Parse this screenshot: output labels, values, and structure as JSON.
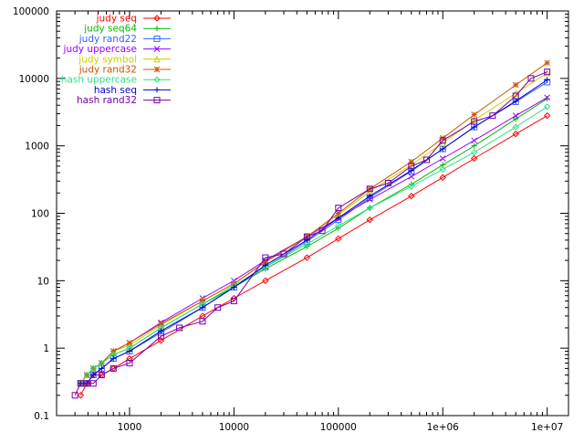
{
  "chart_data": {
    "type": "line",
    "title": "",
    "xlabel": "",
    "ylabel": "",
    "x_scale": "log",
    "y_scale": "log",
    "xlim": [
      200,
      16000000
    ],
    "ylim": [
      0.1,
      100000
    ],
    "grid": false,
    "legend_position": "top-left",
    "x_ticks": [
      {
        "value": 1000,
        "label": "1000"
      },
      {
        "value": 10000,
        "label": "10000"
      },
      {
        "value": 100000,
        "label": "100000"
      },
      {
        "value": 1000000,
        "label": "1e+06"
      },
      {
        "value": 10000000,
        "label": "1e+07"
      }
    ],
    "y_ticks": [
      {
        "value": 0.1,
        "label": "0.1"
      },
      {
        "value": 1,
        "label": "1"
      },
      {
        "value": 10,
        "label": "10"
      },
      {
        "value": 100,
        "label": "100"
      },
      {
        "value": 1000,
        "label": "1000"
      },
      {
        "value": 10000,
        "label": "10000"
      },
      {
        "value": 100000,
        "label": "100000"
      }
    ],
    "series": [
      {
        "name": "judy seq",
        "color": "#ff0000",
        "marker": "diamond",
        "x": [
          340,
          390,
          450,
          540,
          700,
          1000,
          2000,
          5000,
          10000,
          20000,
          50000,
          100000,
          200000,
          500000,
          1000000,
          2000000,
          5000000,
          10000000
        ],
        "y": [
          0.2,
          0.3,
          0.4,
          0.4,
          0.5,
          0.7,
          1.3,
          3.0,
          5.5,
          10,
          22,
          42,
          80,
          180,
          340,
          650,
          1500,
          2800
        ]
      },
      {
        "name": "judy seq64",
        "color": "#00bb00",
        "marker": "plus",
        "x": [
          340,
          390,
          450,
          540,
          700,
          1000,
          2000,
          5000,
          10000,
          20000,
          50000,
          100000,
          200000,
          500000,
          1000000,
          2000000,
          5000000,
          10000000
        ],
        "y": [
          0.3,
          0.4,
          0.5,
          0.6,
          0.8,
          1.0,
          2.0,
          4.5,
          8,
          15,
          32,
          60,
          120,
          270,
          520,
          1000,
          2500,
          5000
        ]
      },
      {
        "name": "judy rand22",
        "color": "#3366ff",
        "marker": "square",
        "x": [
          340,
          390,
          450,
          540,
          700,
          1000,
          2000,
          5000,
          10000,
          20000,
          50000,
          100000,
          200000,
          500000,
          1000000,
          2000000,
          5000000,
          10000000
        ],
        "y": [
          0.3,
          0.3,
          0.4,
          0.5,
          0.7,
          0.9,
          1.7,
          4.0,
          8,
          16,
          38,
          80,
          170,
          420,
          900,
          1900,
          4500,
          8800
        ]
      },
      {
        "name": "judy uppercase",
        "color": "#9900ff",
        "marker": "cross",
        "x": [
          340,
          390,
          450,
          540,
          700,
          1000,
          2000,
          5000,
          10000,
          20000,
          50000,
          100000,
          200000,
          500000,
          1000000,
          2000000,
          5000000,
          10000000
        ],
        "y": [
          0.3,
          0.4,
          0.5,
          0.6,
          0.9,
          1.2,
          2.4,
          5.5,
          10,
          20,
          45,
          85,
          160,
          350,
          650,
          1200,
          2800,
          5200
        ]
      },
      {
        "name": "judy symbol",
        "color": "#cccc00",
        "marker": "triangle",
        "x": [
          340,
          390,
          450,
          540,
          700,
          1000,
          2000,
          5000,
          10000,
          20000,
          50000,
          100000,
          200000,
          500000,
          1000000,
          2000000,
          5000000,
          10000000
        ],
        "y": [
          0.3,
          0.4,
          0.5,
          0.6,
          0.9,
          1.1,
          2.2,
          5.0,
          9,
          19,
          45,
          95,
          210,
          520,
          1100,
          2400,
          6000,
          12000
        ]
      },
      {
        "name": "judy rand32",
        "color": "#cc5500",
        "marker": "star",
        "x": [
          340,
          390,
          450,
          540,
          700,
          1000,
          2000,
          5000,
          10000,
          20000,
          50000,
          100000,
          200000,
          500000,
          1000000,
          2000000,
          5000000,
          10000000
        ],
        "y": [
          0.3,
          0.4,
          0.5,
          0.6,
          0.9,
          1.2,
          2.3,
          5.0,
          9,
          19,
          45,
          100,
          230,
          580,
          1300,
          2900,
          8000,
          17000
        ]
      },
      {
        "name": "hash uppercase",
        "color": "#33dd88",
        "marker": "diamond",
        "x": [
          340,
          390,
          450,
          540,
          700,
          1000,
          2000,
          5000,
          10000,
          20000,
          50000,
          100000,
          200000,
          500000,
          1000000,
          2000000,
          5000000,
          10000000
        ],
        "y": [
          0.3,
          0.4,
          0.5,
          0.6,
          0.8,
          1.0,
          2.0,
          4.5,
          8.5,
          16,
          35,
          65,
          120,
          250,
          450,
          800,
          1900,
          3800
        ]
      },
      {
        "name": "hash seq",
        "color": "#0000cc",
        "marker": "plus",
        "x": [
          340,
          390,
          450,
          540,
          700,
          1000,
          2000,
          5000,
          10000,
          20000,
          50000,
          100000,
          200000,
          500000,
          1000000,
          2000000,
          5000000,
          10000000
        ],
        "y": [
          0.3,
          0.3,
          0.4,
          0.5,
          0.7,
          0.9,
          1.8,
          4.0,
          8,
          17,
          40,
          85,
          180,
          430,
          900,
          1900,
          4600,
          9500
        ]
      },
      {
        "name": "hash rand32",
        "color": "#7700aa",
        "marker": "square",
        "x": [
          300,
          340,
          390,
          450,
          540,
          700,
          1000,
          2000,
          3000,
          5000,
          7000,
          10000,
          20000,
          30000,
          50000,
          70000,
          100000,
          200000,
          300000,
          500000,
          700000,
          1000000,
          2000000,
          3000000,
          5000000,
          7000000,
          10000000
        ],
        "y": [
          0.2,
          0.3,
          0.3,
          0.3,
          0.4,
          0.5,
          0.6,
          1.5,
          2.0,
          2.5,
          4.0,
          5.0,
          22,
          25,
          45,
          55,
          120,
          230,
          280,
          500,
          620,
          1200,
          2300,
          2800,
          5500,
          10000,
          12500
        ]
      }
    ]
  }
}
